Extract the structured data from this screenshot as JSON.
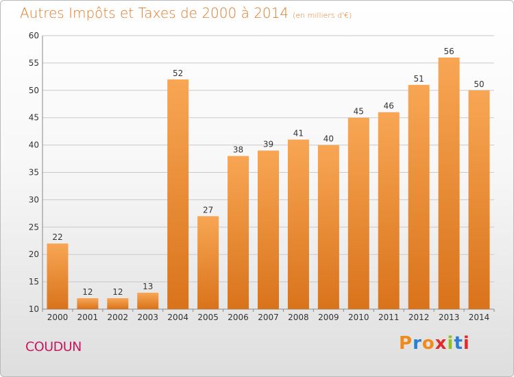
{
  "page": {
    "title": "Autres Impôts et Taxes de 2000 à 2014",
    "unit_note": "(en milliers d'€)",
    "commune": "COUDUN",
    "logo": "Proxiti"
  },
  "colors": {
    "title": "#e07a26",
    "commune": "#c8175e",
    "bar_light": "#f8a654",
    "bar_dark": "#d9731b",
    "grid": "#c9c9c9",
    "logo": [
      "#f08a1c",
      "#2b7fd1",
      "#f08a1c",
      "#e32b2b",
      "#8dc21f",
      "#2b7fd1",
      "#e32b2b"
    ]
  },
  "chart_data": {
    "type": "bar",
    "title": "Autres Impôts et Taxes de 2000 à 2014",
    "subtitle": "(en milliers d'€)",
    "xlabel": "",
    "ylabel": "",
    "categories": [
      "2000",
      "2001",
      "2002",
      "2003",
      "2004",
      "2005",
      "2006",
      "2007",
      "2008",
      "2009",
      "2010",
      "2011",
      "2012",
      "2013",
      "2014"
    ],
    "values": [
      22,
      12,
      12,
      13,
      52,
      27,
      38,
      39,
      41,
      40,
      45,
      46,
      51,
      56,
      50
    ],
    "ylim": [
      10,
      60
    ],
    "yticks": [
      10,
      15,
      20,
      25,
      30,
      35,
      40,
      45,
      50,
      55,
      60
    ],
    "grid": true,
    "data_labels": true
  }
}
